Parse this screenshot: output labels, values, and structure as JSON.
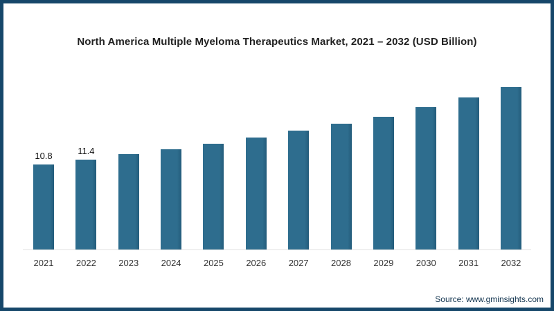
{
  "source": "Source: www.gminsights.com",
  "chart_data": {
    "type": "bar",
    "title": "North America Multiple Myeloma Therapeutics Market, 2021 – 2032 (USD Billion)",
    "categories": [
      "2021",
      "2022",
      "2023",
      "2024",
      "2025",
      "2026",
      "2027",
      "2028",
      "2029",
      "2030",
      "2031",
      "2032"
    ],
    "values": [
      10.8,
      11.4,
      12.1,
      12.7,
      13.4,
      14.2,
      15.1,
      16.0,
      16.9,
      18.1,
      19.3,
      20.6
    ],
    "data_labels": [
      "10.8",
      "11.4",
      "",
      "",
      "",
      "",
      "",
      "",
      "",
      "",
      "",
      ""
    ],
    "xlabel": "",
    "ylabel": "",
    "ylim": [
      0,
      22
    ],
    "grid": false,
    "legend": "none",
    "bar_color": "#2e6d8e",
    "bar_edge_color": "#235c7b"
  },
  "colors": {
    "frame_border": "#16476a",
    "background": "#ffffff",
    "baseline": "#e2e2e2",
    "title_text": "#222222",
    "axis_text": "#333333",
    "source_text": "#12344f"
  }
}
